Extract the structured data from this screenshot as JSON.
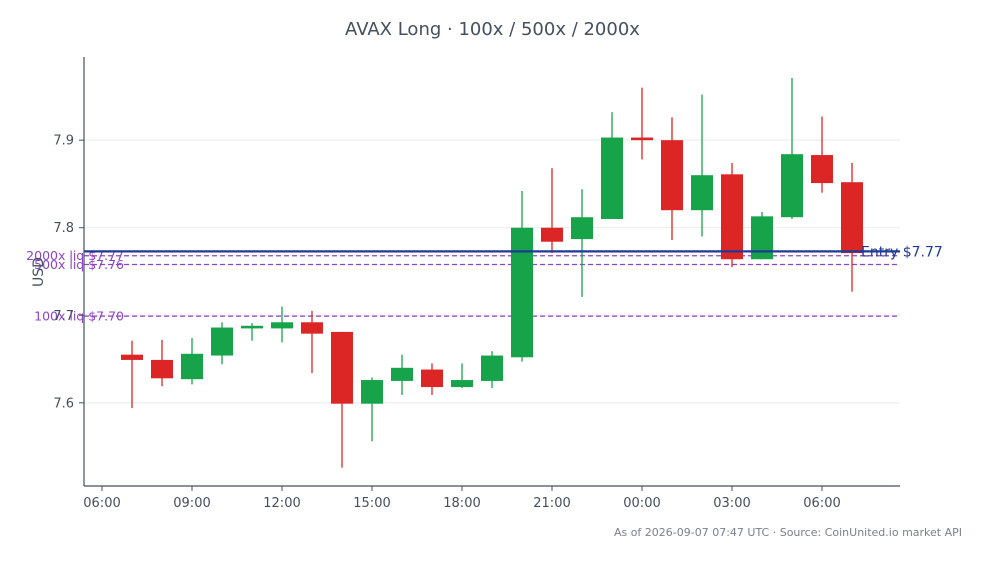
{
  "chart_data": {
    "type": "candlestick",
    "title": "AVAX Long · 100x / 500x / 2000x",
    "ylabel": "USD",
    "xlabel": "",
    "ylim": [
      7.505,
      7.995
    ],
    "yticks": [
      7.6,
      7.7,
      7.8,
      7.9
    ],
    "ytick_labels": [
      "7.6",
      "7.7",
      "7.8",
      "7.9"
    ],
    "xticks": [
      {
        "i": 0,
        "label": "06:00"
      },
      {
        "i": 3,
        "label": "09:00"
      },
      {
        "i": 6,
        "label": "12:00"
      },
      {
        "i": 9,
        "label": "15:00"
      },
      {
        "i": 12,
        "label": "18:00"
      },
      {
        "i": 15,
        "label": "21:00"
      },
      {
        "i": 18,
        "label": "00:00"
      },
      {
        "i": 21,
        "label": "03:00"
      },
      {
        "i": 24,
        "label": "06:00"
      }
    ],
    "grid": true,
    "colors": {
      "up": "#16a34a",
      "down": "#dc2626",
      "entry": "#1f3a93",
      "liq": "#8e44c8",
      "axis": "#44505e",
      "grid": "#e8eaee"
    },
    "candles": [
      {
        "time": "07:00",
        "open": 7.655,
        "high": 7.671,
        "low": 7.594,
        "close": 7.649
      },
      {
        "time": "08:00",
        "open": 7.649,
        "high": 7.672,
        "low": 7.619,
        "close": 7.628
      },
      {
        "time": "09:00",
        "open": 7.627,
        "high": 7.674,
        "low": 7.621,
        "close": 7.656
      },
      {
        "time": "10:00",
        "open": 7.654,
        "high": 7.692,
        "low": 7.644,
        "close": 7.686
      },
      {
        "time": "11:00",
        "open": 7.685,
        "high": 7.691,
        "low": 7.671,
        "close": 7.688
      },
      {
        "time": "12:00",
        "open": 7.685,
        "high": 7.71,
        "low": 7.669,
        "close": 7.692
      },
      {
        "time": "13:00",
        "open": 7.692,
        "high": 7.705,
        "low": 7.634,
        "close": 7.679
      },
      {
        "time": "14:00",
        "open": 7.681,
        "high": 7.681,
        "low": 7.526,
        "close": 7.599
      },
      {
        "time": "15:00",
        "open": 7.599,
        "high": 7.629,
        "low": 7.556,
        "close": 7.626
      },
      {
        "time": "16:00",
        "open": 7.625,
        "high": 7.655,
        "low": 7.609,
        "close": 7.64
      },
      {
        "time": "17:00",
        "open": 7.638,
        "high": 7.645,
        "low": 7.609,
        "close": 7.618
      },
      {
        "time": "18:00",
        "open": 7.618,
        "high": 7.645,
        "low": 7.617,
        "close": 7.626
      },
      {
        "time": "19:00",
        "open": 7.625,
        "high": 7.659,
        "low": 7.617,
        "close": 7.654
      },
      {
        "time": "20:00",
        "open": 7.652,
        "high": 7.842,
        "low": 7.647,
        "close": 7.8
      },
      {
        "time": "21:00",
        "open": 7.8,
        "high": 7.868,
        "low": 7.771,
        "close": 7.784
      },
      {
        "time": "22:00",
        "open": 7.787,
        "high": 7.844,
        "low": 7.721,
        "close": 7.812
      },
      {
        "time": "23:00",
        "open": 7.81,
        "high": 7.932,
        "low": 7.81,
        "close": 7.903
      },
      {
        "time": "00:00",
        "open": 7.903,
        "high": 7.96,
        "low": 7.878,
        "close": 7.9
      },
      {
        "time": "01:00",
        "open": 7.9,
        "high": 7.926,
        "low": 7.786,
        "close": 7.82
      },
      {
        "time": "02:00",
        "open": 7.82,
        "high": 7.952,
        "low": 7.79,
        "close": 7.86
      },
      {
        "time": "03:00",
        "open": 7.861,
        "high": 7.874,
        "low": 7.755,
        "close": 7.764
      },
      {
        "time": "04:00",
        "open": 7.764,
        "high": 7.818,
        "low": 7.764,
        "close": 7.813
      },
      {
        "time": "05:00",
        "open": 7.812,
        "high": 7.971,
        "low": 7.81,
        "close": 7.884
      },
      {
        "time": "06:00",
        "open": 7.883,
        "high": 7.927,
        "low": 7.84,
        "close": 7.851
      },
      {
        "time": "07:00",
        "open": 7.852,
        "high": 7.874,
        "low": 7.727,
        "close": 7.771
      }
    ],
    "x_start_index": 0.6,
    "x_end_index": 27.8,
    "entry": {
      "price": 7.773,
      "label": "Entry $7.77"
    },
    "liquidation_lines": [
      {
        "price": 7.768,
        "label": "2000x liq $7.77"
      },
      {
        "price": 7.758,
        "label": "500x liq $7.76"
      },
      {
        "price": 7.699,
        "label": "100x liq $7.70"
      }
    ]
  },
  "footnote": "As of 2026-09-07 07:47 UTC · Source: CoinUnited.io market API"
}
